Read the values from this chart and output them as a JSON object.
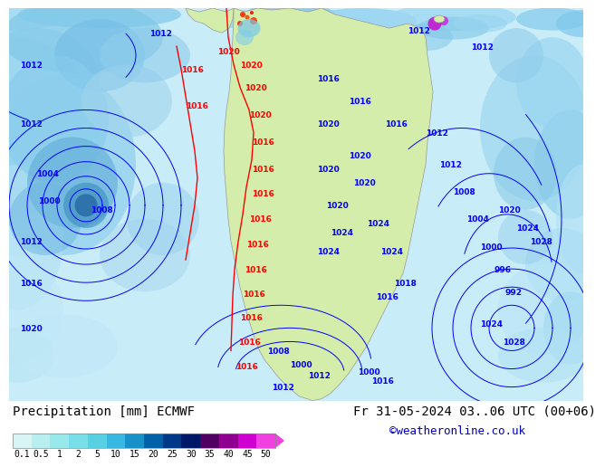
{
  "title_left": "Precipitation [mm] ECMWF",
  "title_right": "Fr 31-05-2024 03..06 UTC (00+06)",
  "credit": "©weatheronline.co.uk",
  "colorbar_values": [
    "0.1",
    "0.5",
    "1",
    "2",
    "5",
    "10",
    "15",
    "20",
    "25",
    "30",
    "35",
    "40",
    "45",
    "50"
  ],
  "colorbar_colors": [
    "#d8f5f5",
    "#b8eef0",
    "#98e8ec",
    "#78dfe8",
    "#58d0e4",
    "#38b8e0",
    "#1890c8",
    "#0060a8",
    "#003888",
    "#001868",
    "#500060",
    "#900090",
    "#d000d0",
    "#f040e0"
  ],
  "bg_color": "#ffffff",
  "ocean_color": "#c8ecf8",
  "land_color": "#d4edaa",
  "credit_color": "#0000bb",
  "label_fontsize": 8,
  "title_fontsize": 10,
  "cb_label_fontsize": 7
}
